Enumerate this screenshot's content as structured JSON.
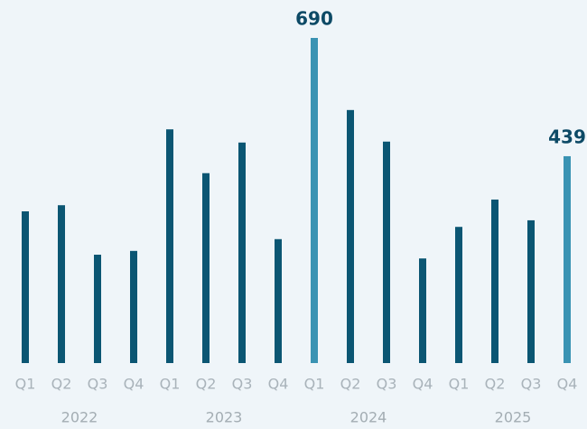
{
  "chart_data": {
    "type": "bar",
    "categories": [
      "Q1",
      "Q2",
      "Q3",
      "Q4",
      "Q1",
      "Q2",
      "Q3",
      "Q4",
      "Q1",
      "Q2",
      "Q3",
      "Q4",
      "Q1",
      "Q2",
      "Q3",
      "Q4"
    ],
    "years": [
      "2022",
      "2023",
      "2024",
      "2025"
    ],
    "values": [
      322,
      335,
      230,
      238,
      496,
      403,
      468,
      263,
      690,
      537,
      470,
      222,
      289,
      347,
      303,
      439
    ],
    "color": "#0b5673",
    "highlight_color": "#3a93b3",
    "highlight": [
      8,
      15
    ]
  }
}
